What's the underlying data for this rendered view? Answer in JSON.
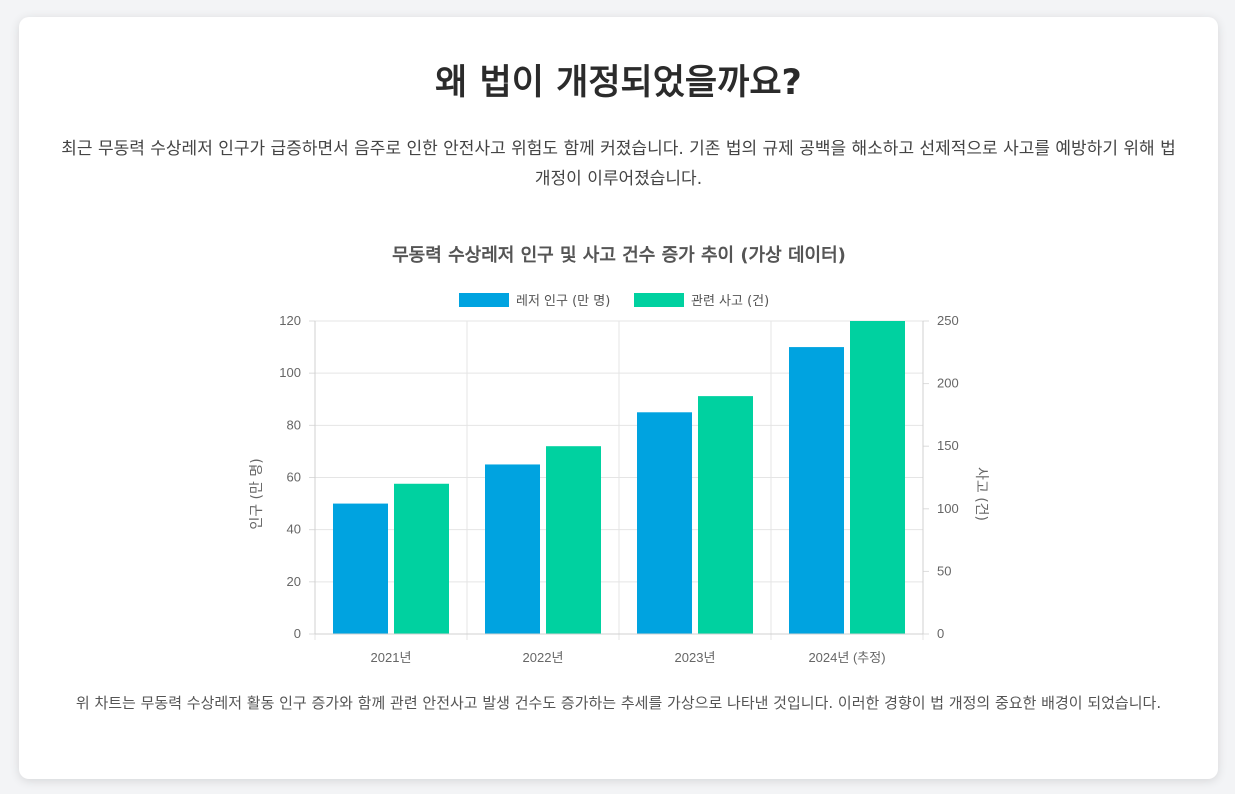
{
  "page": {
    "title": "왜 법이 개정되었을까요?",
    "intro": "최근 무동력 수상레저 인구가 급증하면서 음주로 인한 안전사고 위험도 함께 커졌습니다. 기존 법의 규제 공백을 해소하고 선제적으로 사고를 예방하기 위해 법 개정이 이루어졌습니다.",
    "caption": "위 차트는 무동력 수상레저 활동 인구 증가와 함께 관련 안전사고 발생 건수도 증가하는 추세를 가상으로 나타낸 것입니다. 이러한 경향이 법 개정의 중요한 배경이 되었습니다."
  },
  "chart_data": {
    "type": "bar",
    "title": "무동력 수상레저 인구 및 사고 건수 증가 추이 (가상 데이터)",
    "categories": [
      "2021년",
      "2022년",
      "2023년",
      "2024년 (추정)"
    ],
    "series": [
      {
        "name": "레저 인구 (만 명)",
        "axis": "left",
        "color": "#00a3e0",
        "values": [
          50,
          65,
          85,
          110
        ]
      },
      {
        "name": "관련 사고 (건)",
        "axis": "right",
        "color": "#00d1a0",
        "values": [
          120,
          150,
          190,
          250
        ]
      }
    ],
    "y_left": {
      "label": "인구 (만 명)",
      "min": 0,
      "max": 120,
      "ticks": [
        0,
        20,
        40,
        60,
        80,
        100,
        120
      ]
    },
    "y_right": {
      "label": "사고 (건)",
      "min": 0,
      "max": 250,
      "ticks": [
        0,
        50,
        100,
        150,
        200,
        250
      ]
    },
    "legend_position": "top",
    "grid": true
  }
}
